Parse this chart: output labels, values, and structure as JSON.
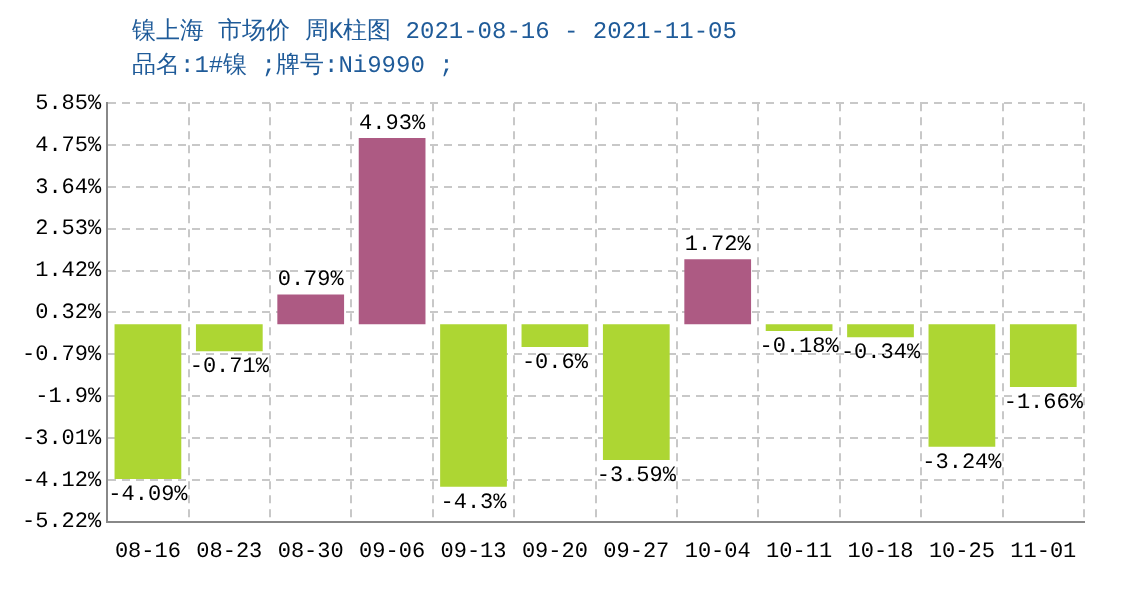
{
  "chart_data": {
    "type": "bar",
    "title": "镍上海 市场价 周K柱图 2021-08-16 - 2021-11-05",
    "subtitle": "品名:1#镍 ;牌号:Ni9990 ;",
    "categories": [
      "08-16",
      "08-23",
      "08-30",
      "09-06",
      "09-13",
      "09-20",
      "09-27",
      "10-04",
      "10-11",
      "10-18",
      "10-25",
      "11-01"
    ],
    "values": [
      -4.09,
      -0.71,
      0.79,
      4.93,
      -4.3,
      -0.6,
      -3.59,
      1.72,
      -0.18,
      -0.34,
      -3.24,
      -1.66
    ],
    "value_labels": [
      "-4.09%",
      "-0.71%",
      "0.79%",
      "4.93%",
      "-4.3%",
      "-0.6%",
      "-3.59%",
      "1.72%",
      "-0.18%",
      "-0.34%",
      "-3.24%",
      "-1.66%"
    ],
    "colors": [
      "#add633",
      "#add633",
      "#ad5a83",
      "#ad5a83",
      "#add633",
      "#add633",
      "#add633",
      "#ad5a83",
      "#add633",
      "#add633",
      "#add633",
      "#add633"
    ],
    "ylim": [
      -5.22,
      5.85
    ],
    "yticks": [
      {
        "value": -5.22,
        "label": "-5.22%"
      },
      {
        "value": -4.12,
        "label": "-4.12%"
      },
      {
        "value": -3.01,
        "label": "-3.01%"
      },
      {
        "value": -1.9,
        "label": "-1.9%"
      },
      {
        "value": -0.79,
        "label": "-0.79%"
      },
      {
        "value": 0.32,
        "label": "0.32%"
      },
      {
        "value": 1.42,
        "label": "1.42%"
      },
      {
        "value": 2.53,
        "label": "2.53%"
      },
      {
        "value": 3.64,
        "label": "3.64%"
      },
      {
        "value": 4.75,
        "label": "4.75%"
      },
      {
        "value": 5.85,
        "label": "5.85%"
      }
    ],
    "grid": true,
    "legend": false
  }
}
